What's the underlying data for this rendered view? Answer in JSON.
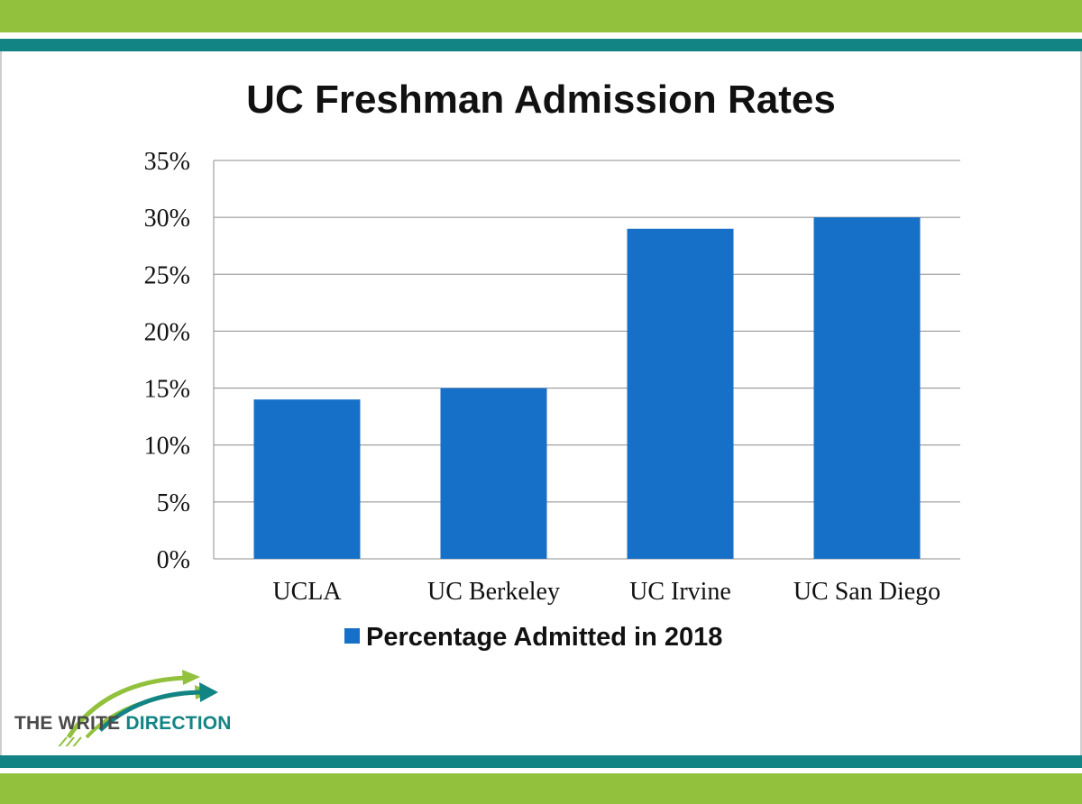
{
  "slide": {
    "colors": {
      "green": "#92c13d",
      "teal": "#138484",
      "bar": "#1670c8"
    }
  },
  "chart_data": {
    "type": "bar",
    "title": "UC Freshman Admission Rates",
    "categories": [
      "UCLA",
      "UC Berkeley",
      "UC Irvine",
      "UC San Diego"
    ],
    "series": [
      {
        "name": "Percentage Admitted in 2018",
        "values": [
          14,
          15,
          29,
          30
        ]
      }
    ],
    "ylim": [
      0,
      35
    ],
    "yticks": [
      0,
      5,
      10,
      15,
      20,
      25,
      30,
      35
    ],
    "ytick_labels": [
      "0%",
      "5%",
      "10%",
      "15%",
      "20%",
      "25%",
      "30%",
      "35%"
    ],
    "grid": true,
    "legend": "bottom",
    "xlabel": "",
    "ylabel": ""
  },
  "logo": {
    "word1": "THE WRITE",
    "word2": "DIRECTION"
  }
}
